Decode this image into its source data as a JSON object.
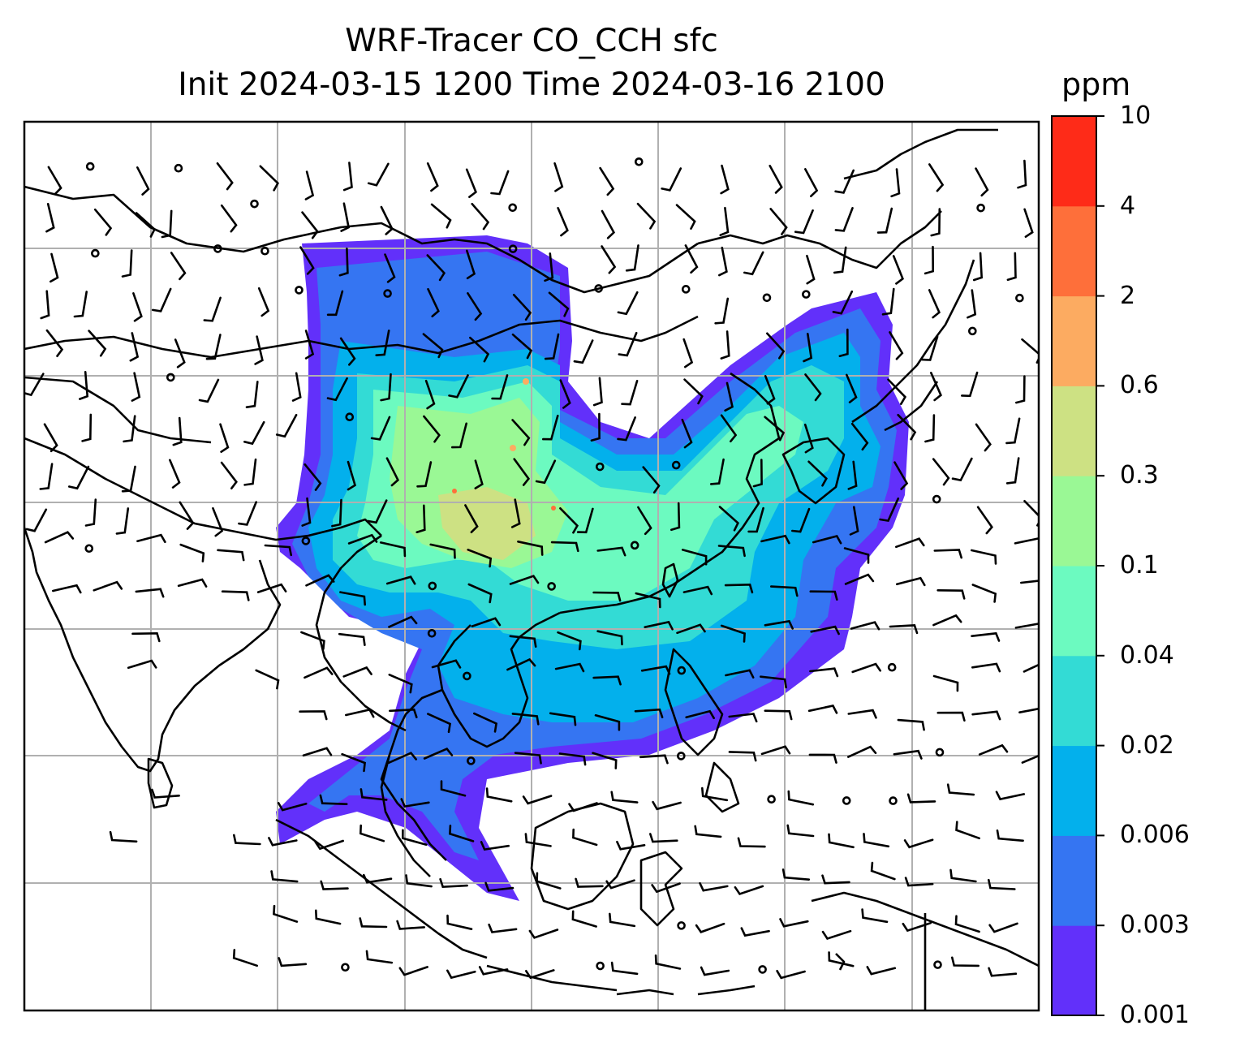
{
  "title": {
    "line1": "WRF-Tracer CO_CCH sfc",
    "line2": "Init 2024-03-15 1200 Time 2024-03-16 2100"
  },
  "colorbar": {
    "units": "ppm",
    "labels": [
      "0.001",
      "0.003",
      "0.006",
      "0.02",
      "0.04",
      "0.1",
      "0.3",
      "0.6",
      "2",
      "4",
      "10"
    ],
    "colors": [
      "#6230fa",
      "#3575f2",
      "#03b0ec",
      "#33dbd5",
      "#6cfac0",
      "#9af895",
      "#cde183",
      "#fcab61",
      "#fe6f3a",
      "#fe2b18"
    ]
  },
  "map": {
    "gridlines": true,
    "wind_barbs_shown": true,
    "coastlines_shown": true
  }
}
